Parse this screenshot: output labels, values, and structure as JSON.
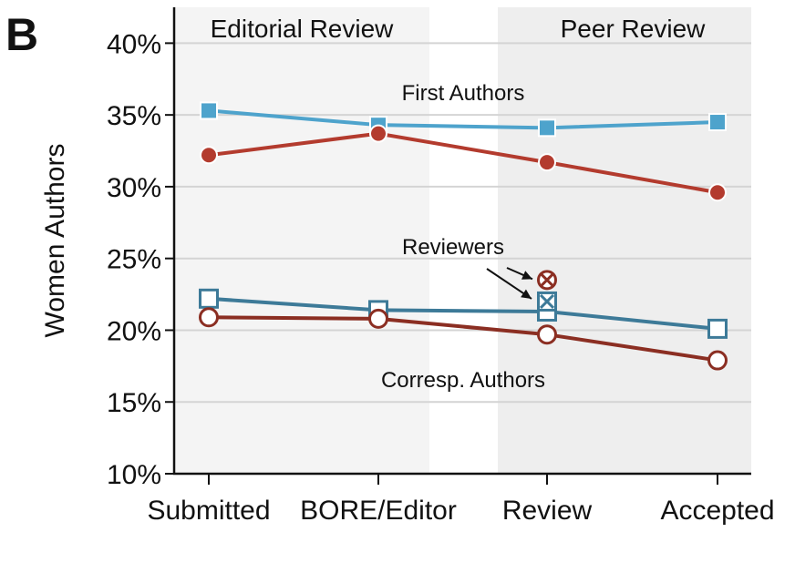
{
  "panel_label": "B",
  "chart_data": {
    "type": "line",
    "ylabel": "Women Authors",
    "xlabel": "",
    "categories": [
      "Submitted",
      "BORE/Editor",
      "Review",
      "Accepted"
    ],
    "yticks": [
      "10%",
      "15%",
      "20%",
      "25%",
      "30%",
      "35%",
      "40%"
    ],
    "ylim": [
      10,
      42.5
    ],
    "grid": "horizontal",
    "regions": [
      {
        "label": "Editorial Review",
        "span": [
          "Submitted",
          "BORE/Editor"
        ]
      },
      {
        "label": "Peer Review",
        "span": [
          "Review",
          "Accepted"
        ]
      }
    ],
    "series": [
      {
        "group": "First Authors",
        "marker": "square-filled",
        "color": "#4ea3cc",
        "values": [
          35.3,
          34.3,
          34.1,
          34.5
        ]
      },
      {
        "group": "First Authors",
        "marker": "circle-filled",
        "color": "#b33b2e",
        "values": [
          32.2,
          33.7,
          31.7,
          29.6
        ]
      },
      {
        "group": "Corresp. Authors",
        "marker": "square-open",
        "color": "#3d7a98",
        "values": [
          22.2,
          21.4,
          21.3,
          20.1
        ]
      },
      {
        "group": "Corresp. Authors",
        "marker": "circle-open",
        "color": "#8b2e22",
        "values": [
          20.9,
          20.8,
          19.7,
          17.9
        ]
      }
    ],
    "reviewers": [
      {
        "category": "Review",
        "value": 23.5,
        "marker": "circle-x",
        "color": "#8b2e22"
      },
      {
        "category": "Review",
        "value": 22.0,
        "marker": "square-x",
        "color": "#3d7a98"
      }
    ],
    "annotations": {
      "first_authors": "First Authors",
      "reviewers": "Reviewers",
      "corresp_authors": "Corresp. Authors"
    }
  }
}
